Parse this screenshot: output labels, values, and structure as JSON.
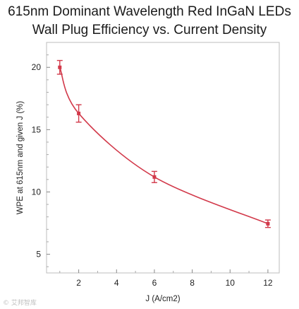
{
  "chart_data": {
    "type": "line",
    "title_lines": [
      "615nm Dominant Wavelength Red InGaN LEDs",
      "Wall Plug Efficiency vs. Current Density"
    ],
    "xlabel": "J (A/cm2)",
    "ylabel": "WPE at 615nm and given J (%)",
    "xlim": [
      0.3,
      12.6
    ],
    "ylim": [
      3.5,
      22
    ],
    "xticks": [
      2,
      4,
      6,
      8,
      10,
      12
    ],
    "yticks": [
      5,
      10,
      15,
      20
    ],
    "grid": false,
    "series": [
      {
        "color": "#d2394a",
        "points": [
          {
            "x": 1,
            "y": 20.0,
            "err": 0.55
          },
          {
            "x": 2,
            "y": 16.3,
            "err": 0.7
          },
          {
            "x": 6,
            "y": 11.2,
            "err": 0.45
          },
          {
            "x": 12,
            "y": 7.45,
            "err": 0.3
          }
        ]
      }
    ]
  },
  "watermark": "© 艾邦智库"
}
